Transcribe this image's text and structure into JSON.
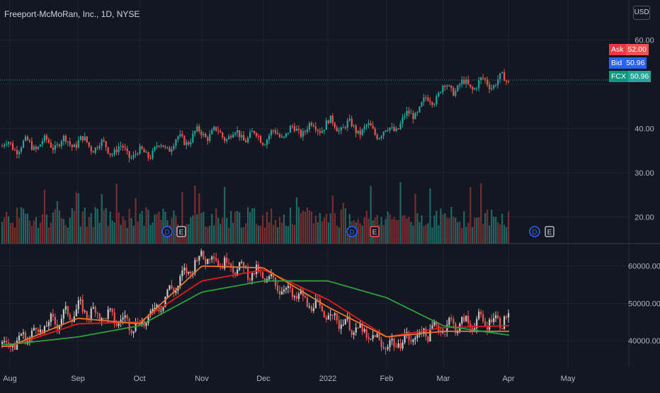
{
  "header": {
    "title": "Freeport-McMoRan, Inc., 1D, NYSE",
    "currency_button": "USD"
  },
  "badges": [
    {
      "label": "Ask",
      "value": "52.00",
      "label_color": "#f23645",
      "value_color": "#ef5350"
    },
    {
      "label": "Bid",
      "value": "50.96",
      "label_color": "#2962ff",
      "value_color": "#2962ff"
    },
    {
      "label": "FCX",
      "value": "50.96",
      "label_color": "#089981",
      "value_color": "#26a69a"
    }
  ],
  "colors": {
    "background": "#131722",
    "grid": "#1e222d",
    "up": "#26a69a",
    "down": "#ef5350",
    "volume_up": "#1f6b66",
    "volume_down": "#7a3033",
    "ma_fast": "#e41a1c",
    "ma_mid": "#e8772e",
    "ma_slow": "#2e9e3e",
    "axis_text": "#b2b5be"
  },
  "events": [
    {
      "type": "D",
      "month": "Oct",
      "color": "#2962ff"
    },
    {
      "type": "E",
      "month": "Oct",
      "color": "#b2b5be"
    },
    {
      "type": "D",
      "month": "Jan",
      "color": "#2962ff"
    },
    {
      "type": "E",
      "month": "Jan",
      "color": "#ef5350"
    },
    {
      "type": "D",
      "month": "Apr",
      "color": "#2962ff"
    },
    {
      "type": "E",
      "month": "Apr",
      "color": "#b2b5be"
    }
  ],
  "chart_data": [
    {
      "type": "candlestick",
      "title": "Freeport-McMoRan, Inc., 1D, NYSE",
      "x_ticks": [
        "Aug",
        "Sep",
        "Oct",
        "Nov",
        "Dec",
        "2022",
        "Feb",
        "Mar",
        "Apr",
        "May"
      ],
      "y_ticks": [
        "20.00",
        "30.00",
        "40.00",
        "60.00"
      ],
      "ylim": [
        14,
        62
      ],
      "last_price": 50.96,
      "ask": 52.0,
      "bid": 50.96,
      "close_points": [
        {
          "x": "Aug",
          "y": 36
        },
        {
          "x": "Sep",
          "y": 37
        },
        {
          "x": "Oct",
          "y": 34
        },
        {
          "x": "Nov",
          "y": 39
        },
        {
          "x": "Dec",
          "y": 38
        },
        {
          "x": "2022",
          "y": 41
        },
        {
          "x": "Feb",
          "y": 39
        },
        {
          "x": "Mar",
          "y": 49
        },
        {
          "x": "Apr",
          "y": 51
        }
      ]
    },
    {
      "type": "line",
      "x_ticks": [
        "Aug",
        "Sep",
        "Oct",
        "Nov",
        "Dec",
        "2022",
        "Feb",
        "Mar",
        "Apr",
        "May"
      ],
      "y_ticks": [
        "40000.00",
        "50000.00",
        "60000.00"
      ],
      "ylim": [
        33000,
        66000
      ],
      "price_points": [
        {
          "x": "Aug",
          "y": 39000
        },
        {
          "x": "Sep",
          "y": 48500
        },
        {
          "x": "Oct",
          "y": 44000
        },
        {
          "x": "Nov",
          "y": 63000
        },
        {
          "x": "Dec",
          "y": 57000
        },
        {
          "x": "2022",
          "y": 47000
        },
        {
          "x": "Feb",
          "y": 38500
        },
        {
          "x": "Mar",
          "y": 44000
        },
        {
          "x": "Apr",
          "y": 46000
        }
      ],
      "series": [
        {
          "values": [
            38500,
            44500,
            45000,
            56000,
            59000,
            51000,
            41000,
            43500,
            44000
          ]
        },
        {
          "values": [
            38500,
            46000,
            44500,
            60000,
            59500,
            49000,
            41000,
            42500,
            42500
          ]
        },
        {
          "values": [
            39000,
            41000,
            44000,
            53000,
            56000,
            56000,
            51500,
            44000,
            41500
          ]
        }
      ]
    }
  ]
}
